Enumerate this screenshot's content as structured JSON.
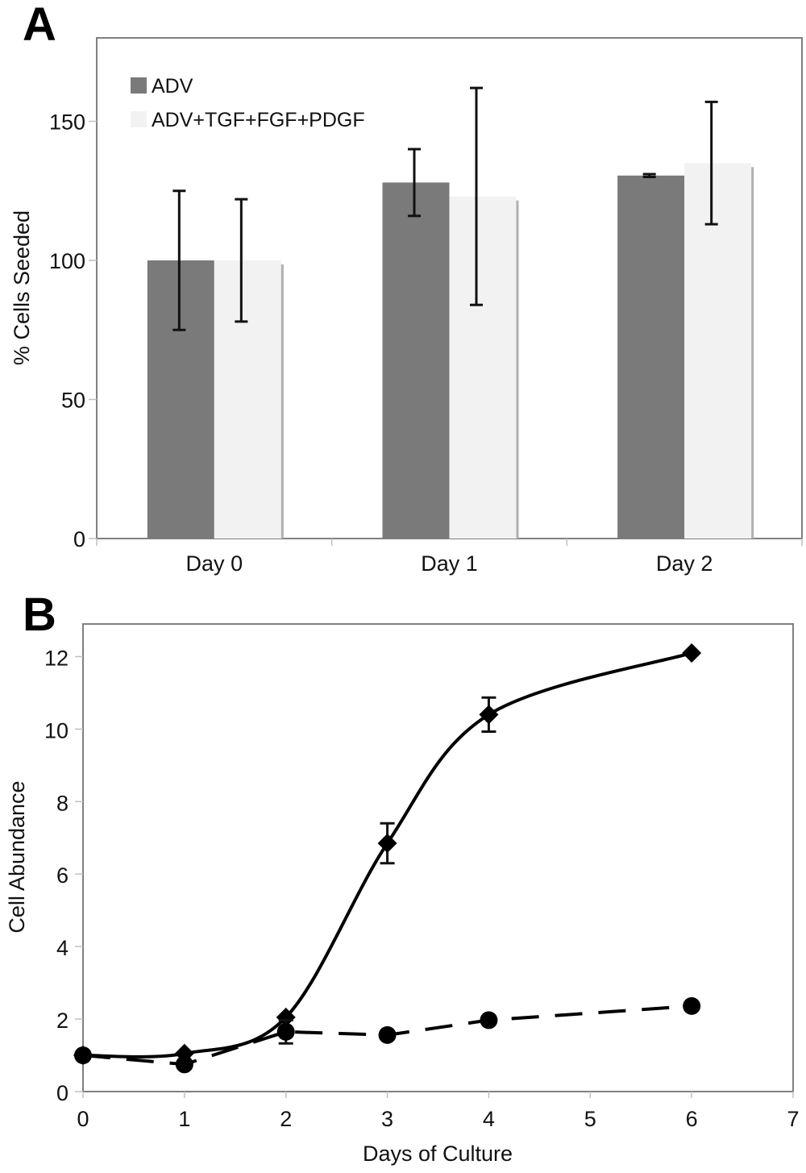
{
  "panels": {
    "a_label": "A",
    "b_label": "B"
  },
  "chart_data": [
    {
      "id": "A",
      "type": "bar",
      "title": "",
      "xlabel": "",
      "ylabel": "% Cells Seeded",
      "ylim": [
        0,
        180
      ],
      "yticks": [
        0,
        50,
        100,
        150
      ],
      "ytick_labels": [
        "0",
        "50",
        "100",
        "150"
      ],
      "categories": [
        "Day 0",
        "Day 1",
        "Day 2"
      ],
      "grid": false,
      "legend_position": "top-left",
      "series": [
        {
          "name": "ADV",
          "color": "#7a7a7a",
          "values": [
            100,
            128,
            130.5
          ],
          "errors": [
            25,
            12,
            0.5
          ]
        },
        {
          "name": "ADV+TGF+FGF+PDGF",
          "color": "#f2f2f2",
          "values": [
            100,
            123,
            135
          ],
          "errors": [
            22,
            39,
            22
          ]
        }
      ]
    },
    {
      "id": "B",
      "type": "line",
      "title": "",
      "xlabel": "Days of Culture",
      "ylabel": "Cell Abundance",
      "xlim": [
        0,
        7
      ],
      "ylim": [
        0,
        12.9
      ],
      "xticks": [
        0,
        1,
        2,
        3,
        4,
        5,
        6,
        7
      ],
      "xtick_labels": [
        "0",
        "1",
        "2",
        "3",
        "4",
        "5",
        "6",
        "7"
      ],
      "yticks": [
        0,
        2,
        4,
        6,
        8,
        10,
        12
      ],
      "ytick_labels": [
        "0",
        "2",
        "4",
        "6",
        "8",
        "10",
        "12"
      ],
      "grid": false,
      "legend": "none",
      "series": [
        {
          "name": "diamond-solid",
          "marker": "diamond",
          "line_style": "solid",
          "smooth": true,
          "color": "#000000",
          "x": [
            0,
            1,
            2,
            3,
            4,
            6
          ],
          "y": [
            1.0,
            1.05,
            2.05,
            6.85,
            10.4,
            12.1
          ],
          "errors": [
            0,
            0,
            0,
            0.55,
            0.47,
            0
          ]
        },
        {
          "name": "circle-dashed",
          "marker": "circle",
          "line_style": "dashed",
          "smooth": false,
          "color": "#000000",
          "x": [
            0,
            1,
            2,
            3,
            4,
            6
          ],
          "y": [
            1.0,
            0.75,
            1.65,
            1.56,
            1.97,
            2.36
          ],
          "errors": [
            0,
            0,
            0.32,
            0,
            0,
            0
          ]
        }
      ]
    }
  ]
}
